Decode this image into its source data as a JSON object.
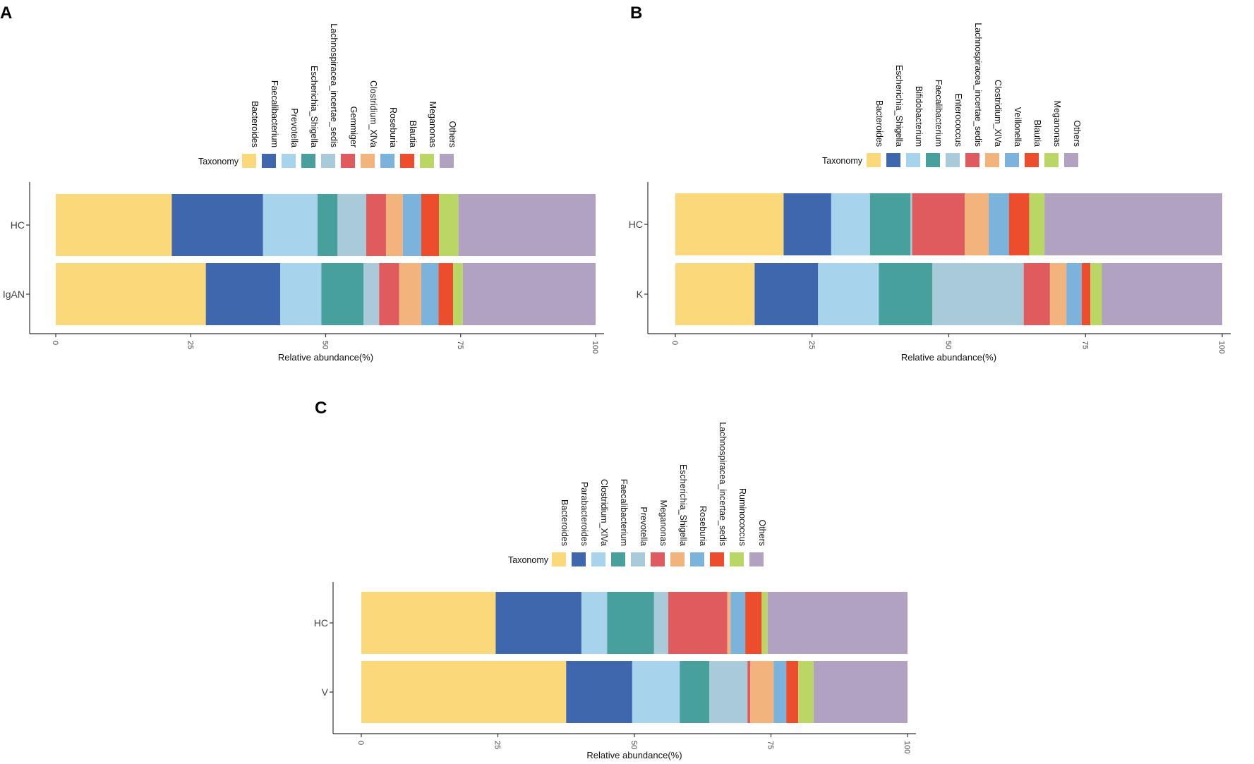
{
  "figure": {
    "colors": {
      "yellow": "#FBD97A",
      "darkblue": "#3F67AE",
      "lightblue": "#A8D3EC",
      "teal": "#48A09C",
      "paleblue": "#A9CAD9",
      "red": "#E05B5E",
      "orange": "#F3B37C",
      "skyblue": "#7BB3DD",
      "orangered": "#EC4D2C",
      "lime": "#BAD766",
      "purple": "#B0A2C0"
    }
  },
  "chart_data": [
    {
      "panel": "A",
      "type": "bar",
      "orientation": "horizontal",
      "stacked": true,
      "legend_title": "Taxonomy",
      "legend_position": "top",
      "xlabel": "Relative abundance(%)",
      "xlim": [
        0,
        100
      ],
      "xticks": [
        "0",
        "25",
        "50",
        "75",
        "100"
      ],
      "categories": [
        "HC",
        "IgAN"
      ],
      "series": [
        {
          "name": "Bacteroides",
          "color": "#FBD97A",
          "values": [
            21.5,
            27.8
          ]
        },
        {
          "name": "Faecalibacterium",
          "color": "#3F67AE",
          "values": [
            16.9,
            13.8
          ]
        },
        {
          "name": "Prevotella",
          "color": "#A8D3EC",
          "values": [
            10.1,
            7.6
          ]
        },
        {
          "name": "Escherichia_Shigella",
          "color": "#48A09C",
          "values": [
            3.7,
            7.8
          ]
        },
        {
          "name": "Lachnospiracea_incertae_sedis",
          "color": "#A9CAD9",
          "values": [
            5.3,
            2.9
          ]
        },
        {
          "name": "Gemmiger",
          "color": "#E05B5E",
          "values": [
            3.7,
            3.7
          ]
        },
        {
          "name": "Clostridium_XlVa",
          "color": "#F3B37C",
          "values": [
            3.1,
            4.1
          ]
        },
        {
          "name": "Roseburia",
          "color": "#7BB3DD",
          "values": [
            3.4,
            3.2
          ]
        },
        {
          "name": "Blautia",
          "color": "#EC4D2C",
          "values": [
            3.3,
            2.7
          ]
        },
        {
          "name": "Meganonas",
          "color": "#BAD766",
          "values": [
            3.6,
            1.8
          ]
        },
        {
          "name": "Others",
          "color": "#B0A2C0",
          "values": [
            25.4,
            24.6
          ]
        }
      ]
    },
    {
      "panel": "B",
      "type": "bar",
      "orientation": "horizontal",
      "stacked": true,
      "legend_title": "Taxonomy",
      "legend_position": "top",
      "xlabel": "Relative abundance(%)",
      "xlim": [
        0,
        100
      ],
      "xticks": [
        "0",
        "25",
        "50",
        "75",
        "100"
      ],
      "categories": [
        "HC",
        "K"
      ],
      "series": [
        {
          "name": "Bacteroides",
          "color": "#FBD97A",
          "values": [
            19.8,
            14.5
          ]
        },
        {
          "name": "Escherichia_Shigella",
          "color": "#3F67AE",
          "values": [
            8.7,
            11.6
          ]
        },
        {
          "name": "Bifidobacterium",
          "color": "#A8D3EC",
          "values": [
            7.1,
            11.1
          ]
        },
        {
          "name": "Faecalibacterium",
          "color": "#48A09C",
          "values": [
            7.4,
            9.8
          ]
        },
        {
          "name": "Enterococcus",
          "color": "#A9CAD9",
          "values": [
            0.3,
            16.7
          ]
        },
        {
          "name": "Lachnospiracea_incertae_sedis",
          "color": "#E05B5E",
          "values": [
            9.6,
            4.8
          ]
        },
        {
          "name": "Clostridium_XlVa",
          "color": "#F3B37C",
          "values": [
            4.4,
            3.0
          ]
        },
        {
          "name": "Veillonella",
          "color": "#7BB3DD",
          "values": [
            3.7,
            2.8
          ]
        },
        {
          "name": "Blautia",
          "color": "#EC4D2C",
          "values": [
            3.7,
            1.6
          ]
        },
        {
          "name": "Meganonas",
          "color": "#BAD766",
          "values": [
            2.8,
            2.1
          ]
        },
        {
          "name": "Others",
          "color": "#B0A2C0",
          "values": [
            32.5,
            22.0
          ]
        }
      ]
    },
    {
      "panel": "C",
      "type": "bar",
      "orientation": "horizontal",
      "stacked": true,
      "legend_title": "Taxonomy",
      "legend_position": "top",
      "xlabel": "Relative abundance(%)",
      "xlim": [
        0,
        100
      ],
      "xticks": [
        "0",
        "25",
        "50",
        "75",
        "100"
      ],
      "categories": [
        "HC",
        "V"
      ],
      "series": [
        {
          "name": "Bacteroides",
          "color": "#FBD97A",
          "values": [
            24.6,
            37.5
          ]
        },
        {
          "name": "Parabacteroides",
          "color": "#3F67AE",
          "values": [
            15.7,
            12.1
          ]
        },
        {
          "name": "Clostridium_XlVa",
          "color": "#A8D3EC",
          "values": [
            4.7,
            8.7
          ]
        },
        {
          "name": "Faecalibacterium",
          "color": "#48A09C",
          "values": [
            8.6,
            5.4
          ]
        },
        {
          "name": "Prevotella",
          "color": "#A9CAD9",
          "values": [
            2.6,
            7.0
          ]
        },
        {
          "name": "Meganonas",
          "color": "#E05B5E",
          "values": [
            10.8,
            0.5
          ]
        },
        {
          "name": "Escherichia_Shigella",
          "color": "#F3B37C",
          "values": [
            0.6,
            4.3
          ]
        },
        {
          "name": "Roseburia",
          "color": "#7BB3DD",
          "values": [
            2.7,
            2.3
          ]
        },
        {
          "name": "Lachnospiracea_incertae_sedis",
          "color": "#EC4D2C",
          "values": [
            3.0,
            2.2
          ]
        },
        {
          "name": "Ruminococcus",
          "color": "#BAD766",
          "values": [
            1.1,
            2.8
          ]
        },
        {
          "name": "Others",
          "color": "#B0A2C0",
          "values": [
            25.6,
            17.2
          ]
        }
      ]
    }
  ]
}
